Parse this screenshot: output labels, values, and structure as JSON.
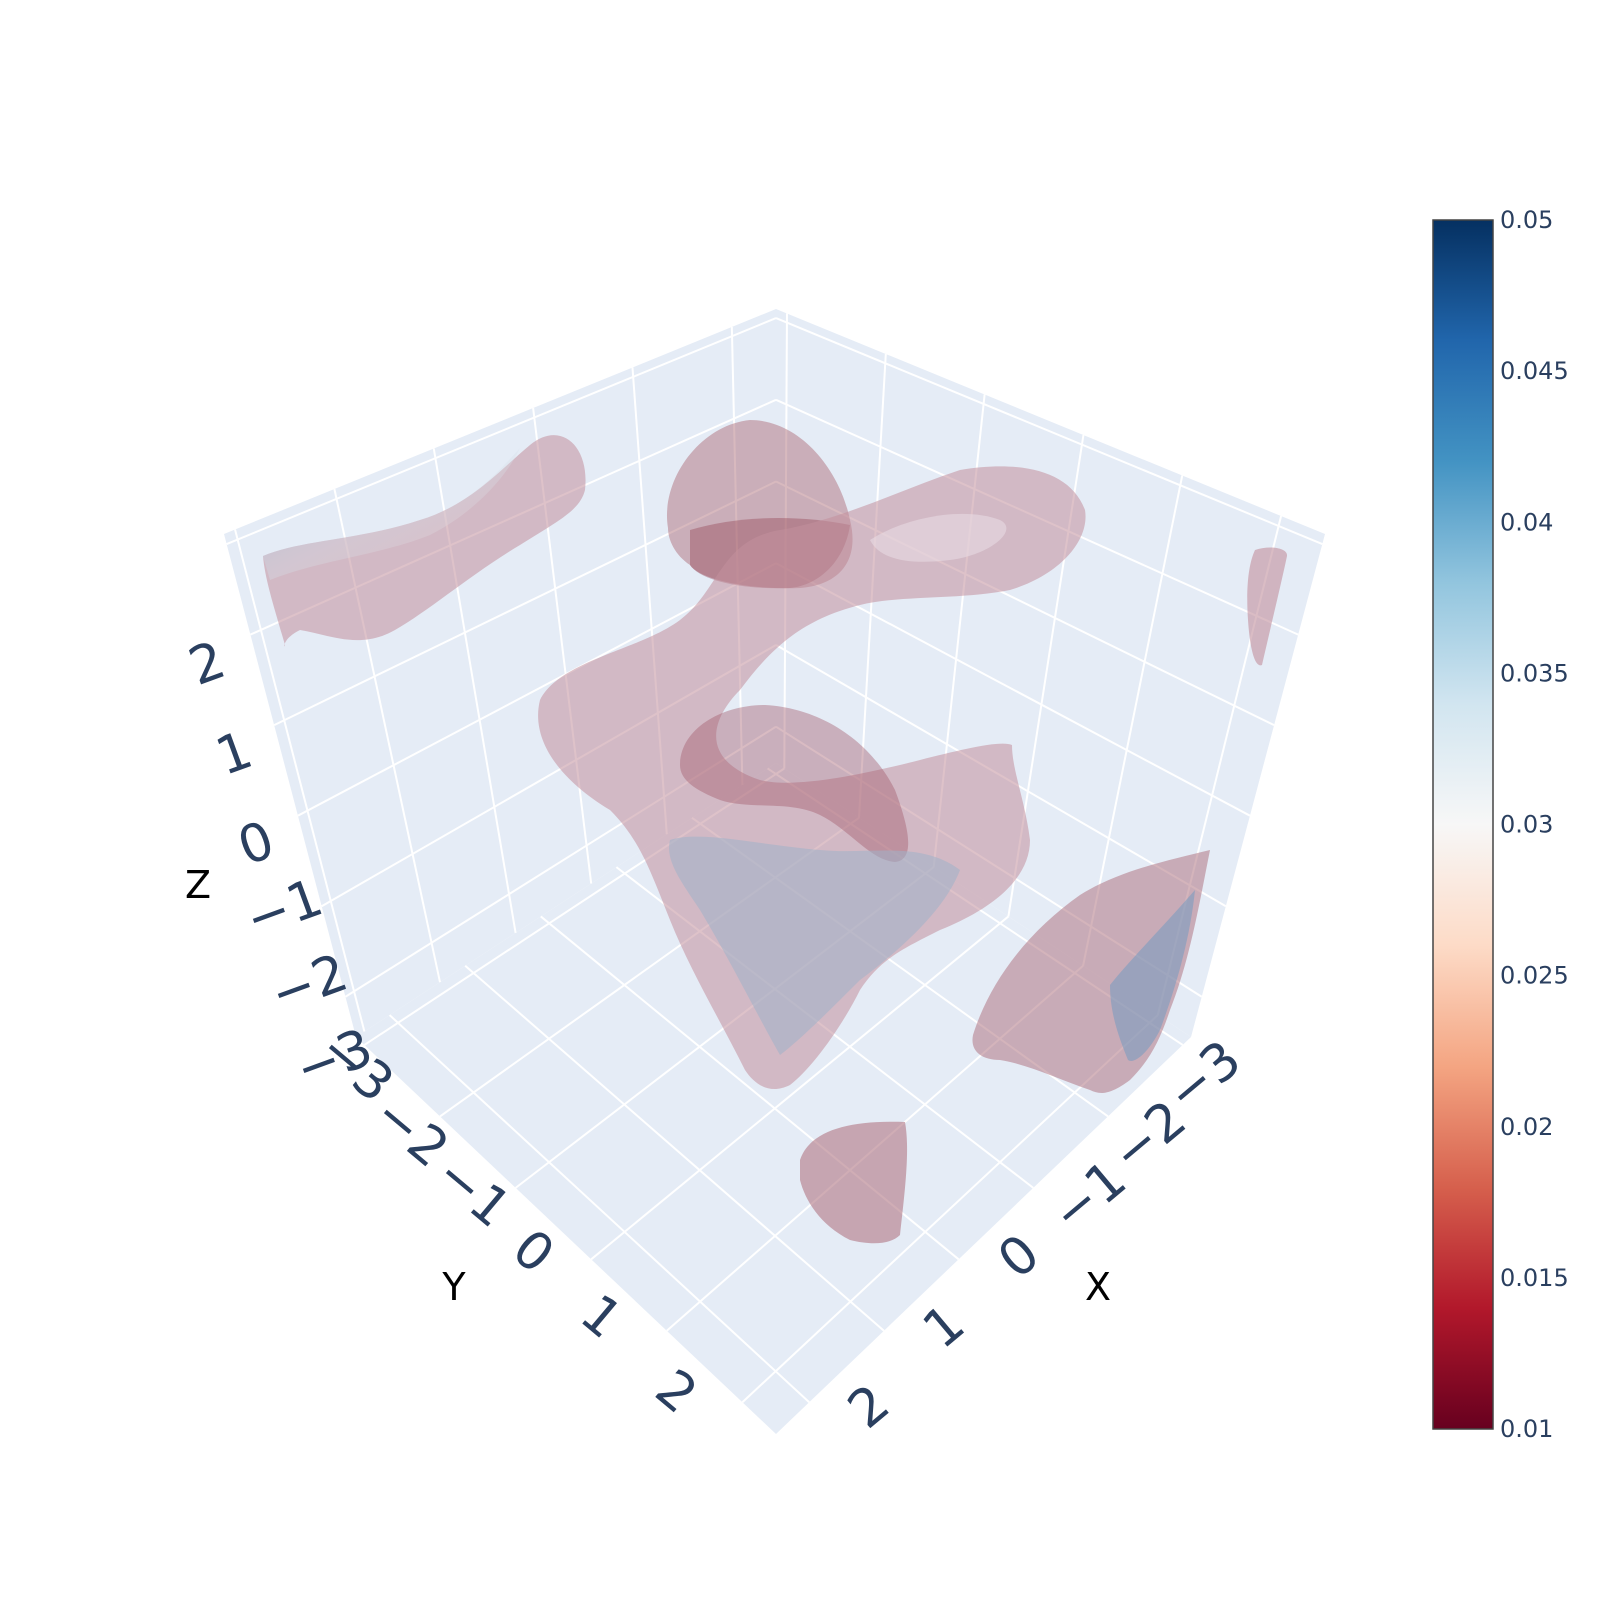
{
  "chart_data": {
    "type": "isosurface",
    "title": "",
    "scene": {
      "x": {
        "title": "X",
        "ticks": [
          "−3",
          "−2",
          "−1",
          "0",
          "1",
          "2"
        ],
        "range": [
          -3,
          2.6
        ]
      },
      "y": {
        "title": "Y",
        "ticks": [
          "−3",
          "−2",
          "−1",
          "0",
          "1",
          "2"
        ],
        "range": [
          -3,
          2.6
        ]
      },
      "z": {
        "title": "Z",
        "ticks": [
          "−3",
          "−2",
          "−1",
          "0",
          "1",
          "2"
        ],
        "range": [
          -3,
          2.6
        ]
      },
      "background": "#e5ecf6",
      "grid": true,
      "gridcolor": "#ffffff"
    },
    "colorscale": {
      "name": "RdBu",
      "range": [
        0.01,
        0.05
      ],
      "ticks": [
        "0.01",
        "0.015",
        "0.02",
        "0.025",
        "0.03",
        "0.035",
        "0.04",
        "0.045",
        "0.05"
      ],
      "colors": [
        "#67001f",
        "#b2182b",
        "#d6604d",
        "#f4a582",
        "#fddbc7",
        "#f7f7f7",
        "#d1e5f0",
        "#92c5de",
        "#4393c3",
        "#2166ac",
        "#053061"
      ]
    },
    "surface_opacity": 0.35,
    "surface_base_color": "#8b2a40"
  }
}
